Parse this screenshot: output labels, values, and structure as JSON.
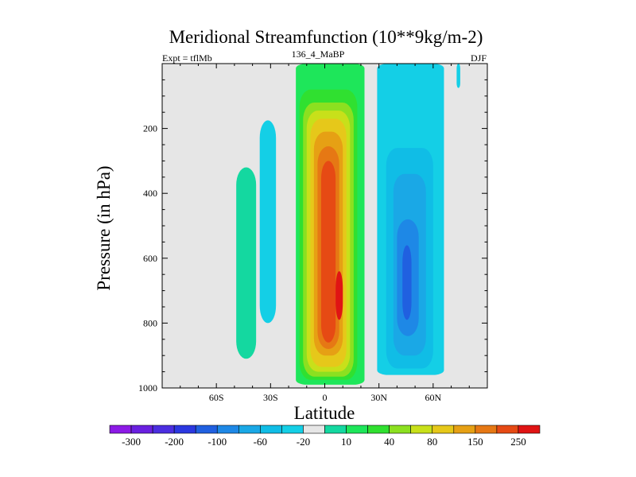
{
  "chart_data": {
    "type": "heatmap",
    "title": "Meridional Streamfunction (10**9kg/m-2)",
    "left_string": "Expt = tflMb",
    "center_string": "136_4_MaBP",
    "right_string": "DJF",
    "xlabel": "Latitude",
    "ylabel": "Pressure (in hPa)",
    "xlim": [
      -90,
      90
    ],
    "ylim": [
      1000,
      0
    ],
    "x_ticks": [
      {
        "value": -60,
        "label": "60S"
      },
      {
        "value": -30,
        "label": "30S"
      },
      {
        "value": 0,
        "label": "0"
      },
      {
        "value": 30,
        "label": "30N"
      },
      {
        "value": 60,
        "label": "60N"
      }
    ],
    "y_ticks": [
      {
        "value": 200,
        "label": "200"
      },
      {
        "value": 400,
        "label": "400"
      },
      {
        "value": 600,
        "label": "600"
      },
      {
        "value": 800,
        "label": "800"
      },
      {
        "value": 1000,
        "label": "1000"
      }
    ],
    "contour_levels": [
      -300,
      -250,
      -200,
      -150,
      -100,
      -80,
      -60,
      -40,
      -20,
      -10,
      10,
      20,
      40,
      60,
      80,
      100,
      150,
      200,
      250,
      300
    ],
    "colorbar_labels": [
      "-300",
      "-200",
      "-100",
      "-60",
      "-20",
      "10",
      "40",
      "80",
      "150",
      "250"
    ],
    "colorbar_colors": [
      "#8c1ae6",
      "#6a20e0",
      "#4b2ee0",
      "#2b38e0",
      "#2060e0",
      "#1e88e6",
      "#1aa8e6",
      "#10bde6",
      "#14cfe6",
      "#e6e6e6",
      "#14d8a0",
      "#1ee65a",
      "#30e030",
      "#8ce020",
      "#c8e01a",
      "#e6c81a",
      "#e6a014",
      "#e67814",
      "#e64a14",
      "#e01414"
    ],
    "fields": [
      {
        "name": "southern-weak-band",
        "level": 10,
        "color": "#14d8a0",
        "lat": [
          -49,
          -38
        ],
        "p": [
          320,
          910
        ]
      },
      {
        "name": "southern-negative-band",
        "level": -20,
        "color": "#14cfe6",
        "lat": [
          -36,
          -27
        ],
        "p": [
          175,
          800
        ]
      },
      {
        "name": "central-cell-10",
        "level": 10,
        "color": "#1ee65a",
        "lat": [
          -16,
          22
        ],
        "p": [
          0,
          990
        ]
      },
      {
        "name": "central-cell-20",
        "level": 20,
        "color": "#30e030",
        "lat": [
          -14,
          18
        ],
        "p": [
          80,
          975
        ]
      },
      {
        "name": "central-cell-40",
        "level": 40,
        "color": "#8ce020",
        "lat": [
          -12,
          16
        ],
        "p": [
          120,
          965
        ]
      },
      {
        "name": "central-cell-60",
        "level": 60,
        "color": "#c8e01a",
        "lat": [
          -10,
          14
        ],
        "p": [
          145,
          950
        ]
      },
      {
        "name": "central-cell-100",
        "level": 100,
        "color": "#e6c81a",
        "lat": [
          -8,
          12
        ],
        "p": [
          170,
          935
        ]
      },
      {
        "name": "central-cell-150",
        "level": 150,
        "color": "#e6a014",
        "lat": [
          -6,
          10
        ],
        "p": [
          210,
          900
        ]
      },
      {
        "name": "central-cell-200",
        "level": 200,
        "color": "#e67814",
        "lat": [
          -4,
          8
        ],
        "p": [
          255,
          880
        ]
      },
      {
        "name": "central-cell-250",
        "level": 250,
        "color": "#e64a14",
        "lat": [
          -2,
          6
        ],
        "p": [
          300,
          860
        ]
      },
      {
        "name": "central-core-300",
        "level": 300,
        "color": "#e01414",
        "lat": [
          6,
          10
        ],
        "p": [
          640,
          790
        ]
      },
      {
        "name": "northern-cell-10",
        "level": -10,
        "color": "#14cfe6",
        "lat": [
          29,
          66
        ],
        "p": [
          0,
          960
        ]
      },
      {
        "name": "northern-cell-20",
        "level": -20,
        "color": "#10bde6",
        "lat": [
          34,
          60
        ],
        "p": [
          260,
          940
        ]
      },
      {
        "name": "northern-cell-40",
        "level": -40,
        "color": "#1aa8e6",
        "lat": [
          38,
          56
        ],
        "p": [
          340,
          900
        ]
      },
      {
        "name": "northern-cell-60",
        "level": -60,
        "color": "#1e88e6",
        "lat": [
          40,
          52
        ],
        "p": [
          480,
          840
        ]
      },
      {
        "name": "northern-cell-80",
        "level": -80,
        "color": "#2060e0",
        "lat": [
          43,
          48
        ],
        "p": [
          560,
          790
        ]
      },
      {
        "name": "polar-negative-sliver",
        "level": -10,
        "color": "#14cfe6",
        "lat": [
          73,
          75
        ],
        "p": [
          0,
          75
        ]
      }
    ]
  }
}
